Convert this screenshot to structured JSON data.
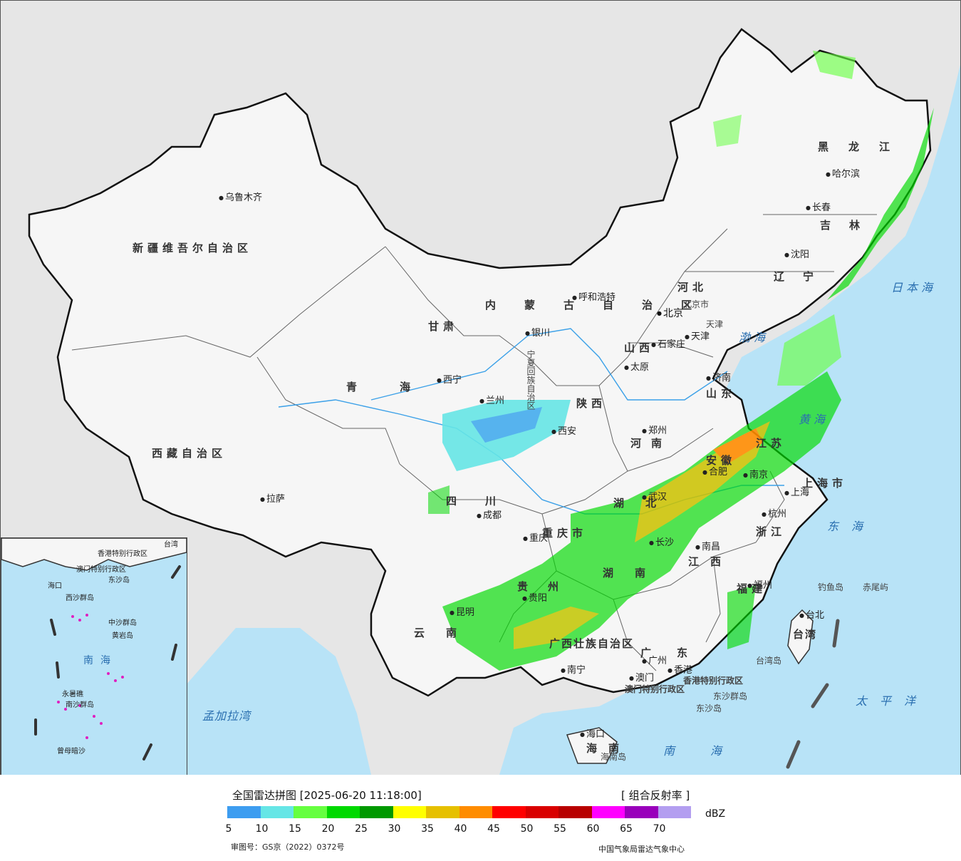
{
  "map": {
    "regions": [
      "新疆维吾尔自治区",
      "西藏自治区",
      "青海",
      "甘肃",
      "内蒙古自治区",
      "黑龙江",
      "吉林",
      "辽宁",
      "河北",
      "山东",
      "山西",
      "陕西",
      "河南",
      "四川",
      "重庆市",
      "湖北",
      "安徽",
      "江苏",
      "上海市",
      "浙江",
      "湖南",
      "江西",
      "福建",
      "贵州",
      "云南",
      "广西壮族自治区",
      "广东",
      "海南",
      "台湾",
      "北京市",
      "天津",
      "宁夏回族自治区"
    ],
    "cities": [
      "乌鲁木齐",
      "拉萨",
      "西宁",
      "兰州",
      "银川",
      "呼和浩特",
      "北京",
      "天津",
      "石家庄",
      "太原",
      "济南",
      "郑州",
      "西安",
      "成都",
      "重庆",
      "武汉",
      "合肥",
      "南京",
      "上海",
      "杭州",
      "南昌",
      "长沙",
      "贵阳",
      "昆明",
      "南宁",
      "广州",
      "香港",
      "澳门",
      "海口",
      "福州",
      "台北",
      "沈阳",
      "长春",
      "哈尔滨"
    ],
    "seas": [
      "日本海",
      "渤海",
      "黄海",
      "东海",
      "太平洋",
      "南海",
      "孟加拉湾"
    ],
    "islands": [
      "钓鱼岛",
      "赤尾屿",
      "台湾岛",
      "东沙群岛",
      "东沙岛",
      "海南岛",
      "香港特别行政区",
      "澳门特别行政区"
    ],
    "inset": {
      "labels": [
        "香港特别行政区",
        "澳门特别行政区",
        "东沙岛",
        "海口",
        "西沙群岛",
        "中沙群岛",
        "黄岩岛",
        "南海",
        "永暑礁",
        "南沙群岛",
        "曾母暗沙",
        "台湾"
      ]
    }
  },
  "legend": {
    "title": "全国雷达拼图 [2025-06-20 11:18:00]",
    "type": "[ 组合反射率 ]",
    "unit": "dBZ",
    "ticks": [
      "5",
      "10",
      "15",
      "20",
      "25",
      "30",
      "35",
      "40",
      "45",
      "50",
      "55",
      "60",
      "65",
      "70"
    ],
    "colors": [
      "#3d9df0",
      "#66e6e6",
      "#66ff40",
      "#00d900",
      "#009900",
      "#ffff00",
      "#e6c000",
      "#ff8c00",
      "#ff0000",
      "#d90000",
      "#b80000",
      "#ff00ff",
      "#9900bb",
      "#b39ef0"
    ],
    "approval": "审图号：GS京（2022）0372号",
    "source": "中国气象局雷达气象中心"
  }
}
